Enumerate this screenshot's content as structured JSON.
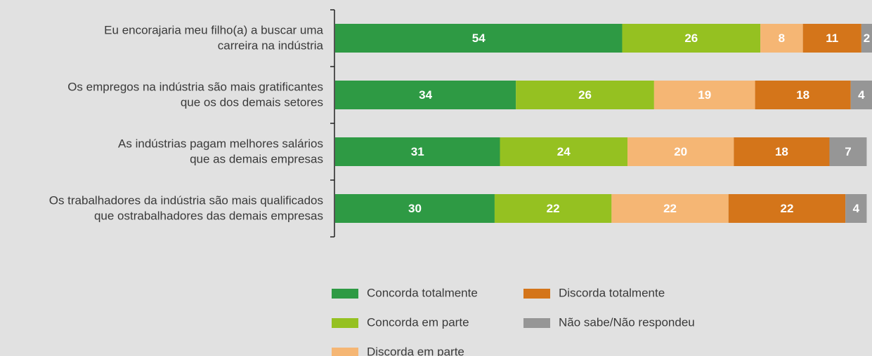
{
  "chart_data": {
    "type": "stacked-bar-horizontal",
    "categories": [
      [
        "Eu encorajaria meu filho(a) a buscar uma",
        "carreira na indústria"
      ],
      [
        "Os empregos na indústria são mais gratificantes",
        "que os dos demais setores"
      ],
      [
        "As indústrias pagam melhores salários",
        "que as demais empresas"
      ],
      [
        "Os trabalhadores da indústria são mais qualificados",
        "que ostrabalhadores das demais empresas"
      ]
    ],
    "series": [
      {
        "name": "Concorda totalmente",
        "color": "#2e9a44",
        "values": [
          54,
          34,
          31,
          30
        ]
      },
      {
        "name": "Concorda em parte",
        "color": "#95c121",
        "values": [
          26,
          26,
          24,
          22
        ]
      },
      {
        "name": "Discorda em parte",
        "color": "#f5b674",
        "values": [
          8,
          19,
          20,
          22
        ]
      },
      {
        "name": "Discorda totalmente",
        "color": "#d4751a",
        "values": [
          11,
          18,
          18,
          22
        ]
      },
      {
        "name": "Não sabe/Não respondeu",
        "color": "#969696",
        "values": [
          2,
          4,
          7,
          4
        ]
      }
    ],
    "legend": "bottom"
  }
}
